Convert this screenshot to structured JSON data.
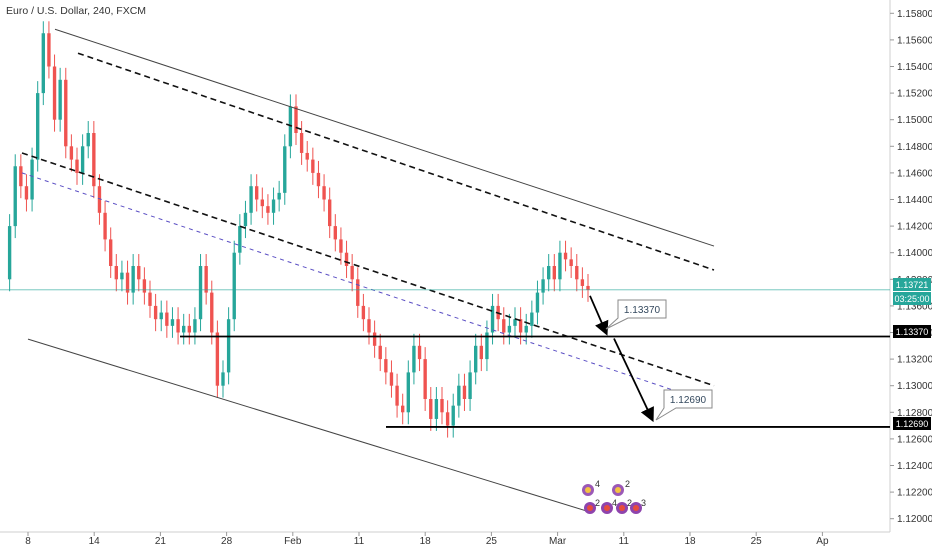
{
  "header": {
    "title": "Euro / U.S. Dollar, 240, FXCM"
  },
  "axis": {
    "price_ticks": [
      "1.15800",
      "1.15600",
      "1.15400",
      "1.15200",
      "1.15000",
      "1.14800",
      "1.14600",
      "1.14400",
      "1.14200",
      "1.14000",
      "1.13800",
      "1.13600",
      "1.13400",
      "1.13200",
      "1.13000",
      "1.12800",
      "1.12600",
      "1.12400",
      "1.12200",
      "1.12000"
    ],
    "time_ticks": [
      "8",
      "14",
      "21",
      "28",
      "Feb",
      "11",
      "18",
      "25",
      "Mar",
      "11",
      "18",
      "25",
      "Ap"
    ]
  },
  "tags": {
    "current_price": "1.13721",
    "countdown": "03:25:00",
    "level_1": "1.13370",
    "level_2": "1.12690"
  },
  "callouts": {
    "target_1": "1.13370",
    "target_2": "1.12690"
  },
  "events": {
    "counts": [
      "4",
      "2",
      "2",
      "4",
      "2",
      "3"
    ]
  },
  "colors": {
    "up": "#26a69a",
    "down": "#ef5350",
    "current": "#26a69a",
    "midline": "#5b4fc4",
    "level": "#000000"
  },
  "chart_data": {
    "type": "candlestick",
    "title": "Euro / U.S. Dollar, 240, FXCM",
    "symbol": "EURUSD",
    "timeframe": "240",
    "source": "FXCM",
    "yrange": [
      1.119,
      1.159
    ],
    "current_price": 1.13721,
    "horizontal_levels": [
      1.1337,
      1.1269
    ],
    "projected_targets": [
      1.1337,
      1.1269
    ],
    "series": [
      {
        "name": "upper-channel-solid",
        "y": [
          1.1568,
          1.1405
        ]
      },
      {
        "name": "upper-channel-dashed",
        "y": [
          1.155,
          1.1387
        ]
      },
      {
        "name": "middle-channel-dashed",
        "y": [
          1.1475,
          1.13
        ]
      },
      {
        "name": "mid-purple-dashed",
        "y": [
          1.146,
          1.1295
        ]
      },
      {
        "name": "lower-channel-solid",
        "y": [
          1.1335,
          1.1205
        ]
      }
    ],
    "price_path": [
      1.138,
      1.142,
      1.1465,
      1.145,
      1.144,
      1.147,
      1.152,
      1.1565,
      1.154,
      1.15,
      1.153,
      1.148,
      1.147,
      1.146,
      1.148,
      1.149,
      1.145,
      1.143,
      1.141,
      1.139,
      1.138,
      1.1385,
      1.137,
      1.139,
      1.138,
      1.137,
      1.136,
      1.135,
      1.1355,
      1.1345,
      1.135,
      1.134,
      1.1345,
      1.134,
      1.135,
      1.139,
      1.137,
      1.134,
      1.13,
      1.131,
      1.135,
      1.14,
      1.142,
      1.143,
      1.145,
      1.144,
      1.1435,
      1.143,
      1.144,
      1.1445,
      1.148,
      1.151,
      1.149,
      1.1475,
      1.147,
      1.146,
      1.145,
      1.144,
      1.142,
      1.141,
      1.14,
      1.139,
      1.138,
      1.136,
      1.135,
      1.134,
      1.133,
      1.132,
      1.131,
      1.13,
      1.1285,
      1.128,
      1.131,
      1.133,
      1.132,
      1.129,
      1.1275,
      1.129,
      1.128,
      1.127,
      1.1285,
      1.13,
      1.129,
      1.131,
      1.133,
      1.132,
      1.134,
      1.136,
      1.135,
      1.134,
      1.1345,
      1.135,
      1.134,
      1.1345,
      1.1355,
      1.137,
      1.138,
      1.139,
      1.138,
      1.14,
      1.1395,
      1.139,
      1.138,
      1.1375,
      1.1372
    ]
  }
}
